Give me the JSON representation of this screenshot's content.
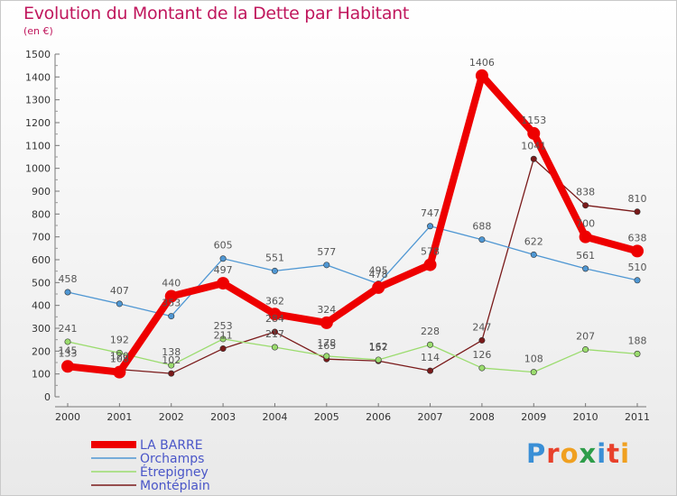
{
  "title": "Evolution du Montant de la Dette par Habitant",
  "subtitle": "(en €)",
  "logo": {
    "text": "Proxiti",
    "colors": [
      "#3a8fd6",
      "#e8412c",
      "#f0a020",
      "#2e9d4a",
      "#3a8fd6",
      "#e8412c",
      "#f0a020"
    ]
  },
  "chart_data": {
    "type": "line",
    "title": "Evolution du Montant de la Dette par Habitant",
    "ylabel": "(en €)",
    "xlabel": "",
    "categories": [
      "2000",
      "2001",
      "2002",
      "2003",
      "2004",
      "2005",
      "2006",
      "2007",
      "2008",
      "2009",
      "2010",
      "2011"
    ],
    "ylim": [
      0,
      1500
    ],
    "yticks": [
      "0",
      "100",
      "200",
      "300",
      "400",
      "500",
      "600",
      "700",
      "800",
      "900",
      "1000",
      "1100",
      "1200",
      "1300",
      "1400",
      "1500"
    ],
    "grid": false,
    "legend_position": "bottom-left",
    "series": [
      {
        "name": "LA BARRE",
        "color": "#ee0000",
        "values": [
          133,
          108,
          440,
          497,
          362,
          324,
          478,
          578,
          1406,
          1153,
          700,
          638
        ],
        "labels": [
          "133",
          "108",
          "440",
          "497",
          "362",
          "324",
          "478",
          "578",
          "1406",
          "1153",
          "700",
          "638"
        ]
      },
      {
        "name": "Orchamps",
        "color": "#4f97d3",
        "values": [
          458,
          407,
          353,
          605,
          551,
          577,
          495,
          747,
          688,
          622,
          561,
          510
        ],
        "labels": [
          "458",
          "407",
          "353",
          "605",
          "551",
          "577",
          "495",
          "747",
          "688",
          "622",
          "561",
          "510"
        ]
      },
      {
        "name": "Étrepigney",
        "color": "#9bdc6e",
        "values": [
          241,
          192,
          138,
          253,
          217,
          178,
          162,
          228,
          126,
          108,
          207,
          188
        ],
        "labels": [
          "241",
          "192",
          "138",
          "253",
          "217",
          "178",
          "162",
          "228",
          "126",
          "108",
          "207",
          "188"
        ]
      },
      {
        "name": "Montéplain",
        "color": "#7a1a1a",
        "values": [
          145,
          120,
          102,
          211,
          284,
          165,
          157,
          114,
          247,
          1041,
          838,
          810
        ],
        "labels": [
          "145",
          "120",
          "102",
          "211",
          "284",
          "165",
          "157",
          "114",
          "247",
          "1041",
          "838",
          "810"
        ]
      }
    ]
  }
}
